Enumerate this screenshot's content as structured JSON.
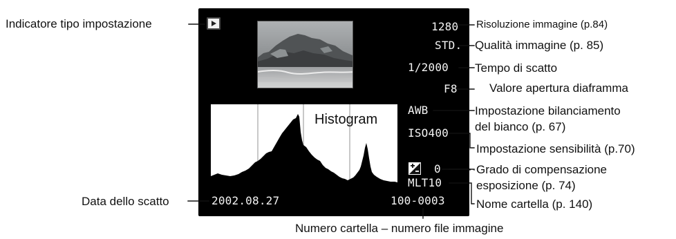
{
  "camera_display": {
    "resolution": "1280",
    "quality": "STD.",
    "shutter_speed": "1/2000",
    "aperture": "F8",
    "white_balance": "AWB",
    "sensitivity": "ISO400",
    "exposure_compensation": "0",
    "folder_name": "MLT10",
    "date": "2002.08.27",
    "file_number": "100-0003",
    "histogram_title": "Histogram"
  },
  "annotations": {
    "setting_type_indicator": "Indicatore tipo impostazione",
    "image_resolution": "Risoluzione immagine (p.84)",
    "image_quality": "Qualità immagine (p. 85)",
    "shutter_time": "Tempo di scatto",
    "aperture_value": "Valore apertura diaframma",
    "white_balance_line1": "Impostazione bilanciamento",
    "white_balance_line2": "del bianco (p. 67)",
    "sensitivity": "Impostazione sensibilità (p.70)",
    "exposure_comp_line1": "Grado di compensazione",
    "exposure_comp_line2": "esposizione (p. 74)",
    "folder_name": "Nome cartella (p. 140)",
    "shot_date": "Data dello scatto",
    "folder_file_number": "Numero cartella – numero file immagine"
  },
  "icons": {
    "playback_indicator": "play-icon",
    "exposure_compensation": "exposure-compensation-icon"
  },
  "colors": {
    "screen_background": "#000000",
    "histogram_background": "#ffffff",
    "histogram_fill": "#000000",
    "screen_text": "#f4f4f4"
  }
}
